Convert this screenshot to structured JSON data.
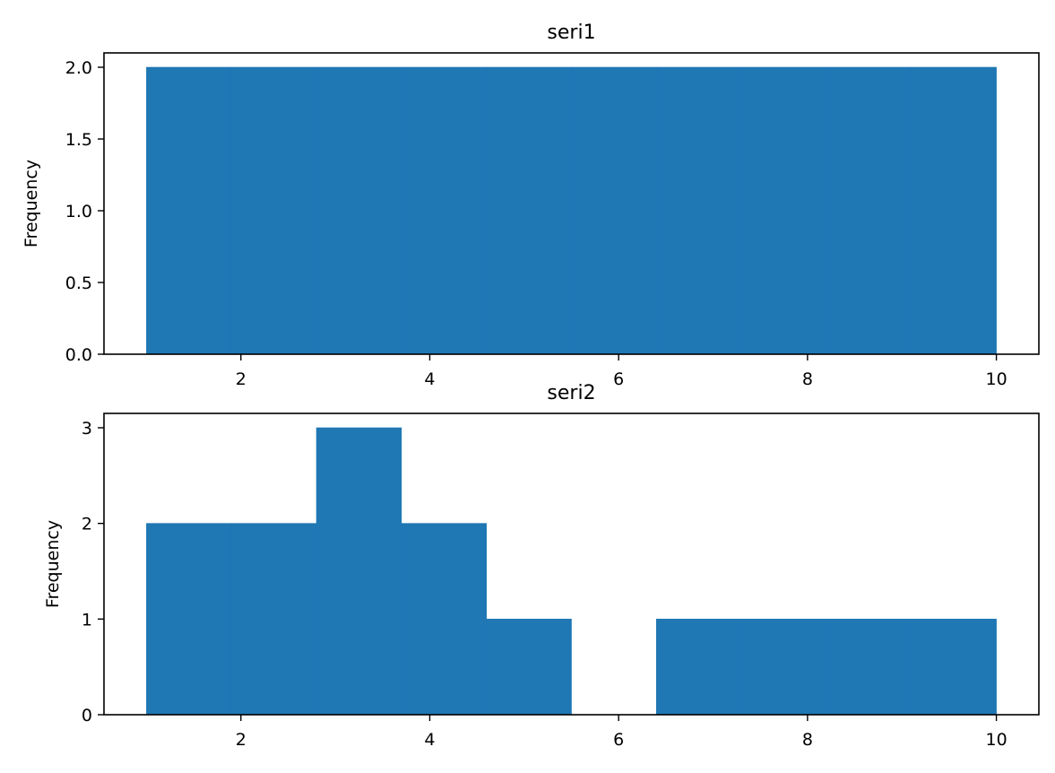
{
  "chart_data": [
    {
      "type": "bar",
      "title": "seri1",
      "xlabel": "",
      "ylabel": "Frequency",
      "xlim": [
        0.55,
        10.45
      ],
      "ylim": [
        0,
        2.1
      ],
      "xticks": [
        2,
        4,
        6,
        8,
        10
      ],
      "yticks": [
        0,
        0.5,
        1.0,
        1.5,
        2.0
      ],
      "yticklabels": [
        "0.0",
        "0.5",
        "1.0",
        "1.5",
        "2.0"
      ],
      "grid": false,
      "color": "#1f77b4",
      "bins": [
        {
          "x0": 1.0,
          "x1": 1.9,
          "value": 2
        },
        {
          "x0": 1.9,
          "x1": 2.8,
          "value": 2
        },
        {
          "x0": 2.8,
          "x1": 3.7,
          "value": 2
        },
        {
          "x0": 3.7,
          "x1": 4.6,
          "value": 2
        },
        {
          "x0": 4.6,
          "x1": 5.5,
          "value": 2
        },
        {
          "x0": 5.5,
          "x1": 6.4,
          "value": 2
        },
        {
          "x0": 6.4,
          "x1": 7.3,
          "value": 2
        },
        {
          "x0": 7.3,
          "x1": 8.2,
          "value": 2
        },
        {
          "x0": 8.2,
          "x1": 9.1,
          "value": 2
        },
        {
          "x0": 9.1,
          "x1": 10.0,
          "value": 2
        }
      ]
    },
    {
      "type": "bar",
      "title": "seri2",
      "xlabel": "",
      "ylabel": "Frequency",
      "xlim": [
        0.55,
        10.45
      ],
      "ylim": [
        0,
        3.15
      ],
      "xticks": [
        2,
        4,
        6,
        8,
        10
      ],
      "yticks": [
        0,
        1,
        2,
        3
      ],
      "yticklabels": [
        "0",
        "1",
        "2",
        "3"
      ],
      "grid": false,
      "color": "#1f77b4",
      "bins": [
        {
          "x0": 1.0,
          "x1": 1.9,
          "value": 2
        },
        {
          "x0": 1.9,
          "x1": 2.8,
          "value": 2
        },
        {
          "x0": 2.8,
          "x1": 3.7,
          "value": 3
        },
        {
          "x0": 3.7,
          "x1": 4.6,
          "value": 2
        },
        {
          "x0": 4.6,
          "x1": 5.5,
          "value": 1
        },
        {
          "x0": 5.5,
          "x1": 6.4,
          "value": 0
        },
        {
          "x0": 6.4,
          "x1": 7.3,
          "value": 1
        },
        {
          "x0": 7.3,
          "x1": 8.2,
          "value": 1
        },
        {
          "x0": 8.2,
          "x1": 9.1,
          "value": 1
        },
        {
          "x0": 9.1,
          "x1": 10.0,
          "value": 1
        }
      ]
    }
  ]
}
